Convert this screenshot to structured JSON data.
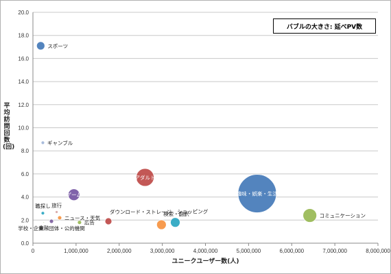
{
  "chart_data": {
    "type": "bubble",
    "legend_note": "バブルの大きさ: 延べPV数",
    "xlabel": "ユニークユーザー数(人)",
    "ylabel": "平均訪問回数(回)",
    "xlim": [
      0,
      8000000
    ],
    "ylim": [
      0,
      20
    ],
    "x_ticks": [
      0,
      1000000,
      2000000,
      3000000,
      4000000,
      5000000,
      6000000,
      7000000,
      8000000
    ],
    "x_tick_labels": [
      "0",
      "1,000,000",
      "2,000,000",
      "3,000,000",
      "4,000,000",
      "5,000,000",
      "6,000,000",
      "7,000,000",
      "8,000,000"
    ],
    "y_ticks": [
      0,
      2,
      4,
      6,
      8,
      10,
      12,
      14,
      16,
      18,
      20
    ],
    "y_tick_labels": [
      "0.0",
      "2.0",
      "4.0",
      "6.0",
      "8.0",
      "10.0",
      "12.0",
      "14.0",
      "16.0",
      "18.0",
      "20.0"
    ],
    "grid": true,
    "points": [
      {
        "name": "スポーツ",
        "x": 180000,
        "y": 17.1,
        "size": 12,
        "color": "#4a7ebb",
        "label_pos": "right"
      },
      {
        "name": "ギャンブル",
        "x": 230000,
        "y": 8.7,
        "size": 5,
        "color": "#a5b9db",
        "label_pos": "right"
      },
      {
        "name": "旅行",
        "x": 550000,
        "y": 2.7,
        "size": 4,
        "color": "#d9a8a6",
        "label_pos": "top"
      },
      {
        "name": "職探し",
        "x": 230000,
        "y": 2.6,
        "size": 5,
        "color": "#31a9c4",
        "label_pos": "top"
      },
      {
        "name": "金融",
        "x": 250000,
        "y": 1.8,
        "size": 2,
        "color": "#c5d8a0",
        "label_pos": "bottom"
      },
      {
        "name": "学校・企業・団体・公的機関",
        "x": 430000,
        "y": 1.9,
        "size": 6,
        "color": "#8064a2",
        "label_pos": "bottom"
      },
      {
        "name": "ニュース・天気",
        "x": 620000,
        "y": 2.2,
        "size": 6,
        "color": "#f79646",
        "label_pos": "right"
      },
      {
        "name": "ゲーム",
        "x": 950000,
        "y": 4.2,
        "size": 17,
        "color": "#7a5ba6",
        "label_pos": "inside"
      },
      {
        "name": "広告",
        "x": 1080000,
        "y": 1.8,
        "size": 6,
        "color": "#9bbb59",
        "label_pos": "right"
      },
      {
        "name": "ダウンロード・ストレージ",
        "x": 1750000,
        "y": 1.9,
        "size": 10,
        "color": "#c0504d",
        "label_pos": "top-right"
      },
      {
        "name": "アダルト",
        "x": 2600000,
        "y": 5.7,
        "size": 26,
        "color": "#c0504d",
        "label_pos": "inside"
      },
      {
        "name": "検索・翻訳",
        "x": 2980000,
        "y": 1.6,
        "size": 14,
        "color": "#f79646",
        "label_pos": "top-right"
      },
      {
        "name": "ショッピング",
        "x": 3300000,
        "y": 1.8,
        "size": 14,
        "color": "#31a9c4",
        "label_pos": "top-right"
      },
      {
        "name": "趣味・娯楽・生活",
        "x": 5200000,
        "y": 4.3,
        "size": 56,
        "color": "#4a7ebb",
        "label_pos": "inside"
      },
      {
        "name": "コミュニケーション",
        "x": 6420000,
        "y": 2.4,
        "size": 20,
        "color": "#9bbb59",
        "label_pos": "right"
      }
    ]
  }
}
